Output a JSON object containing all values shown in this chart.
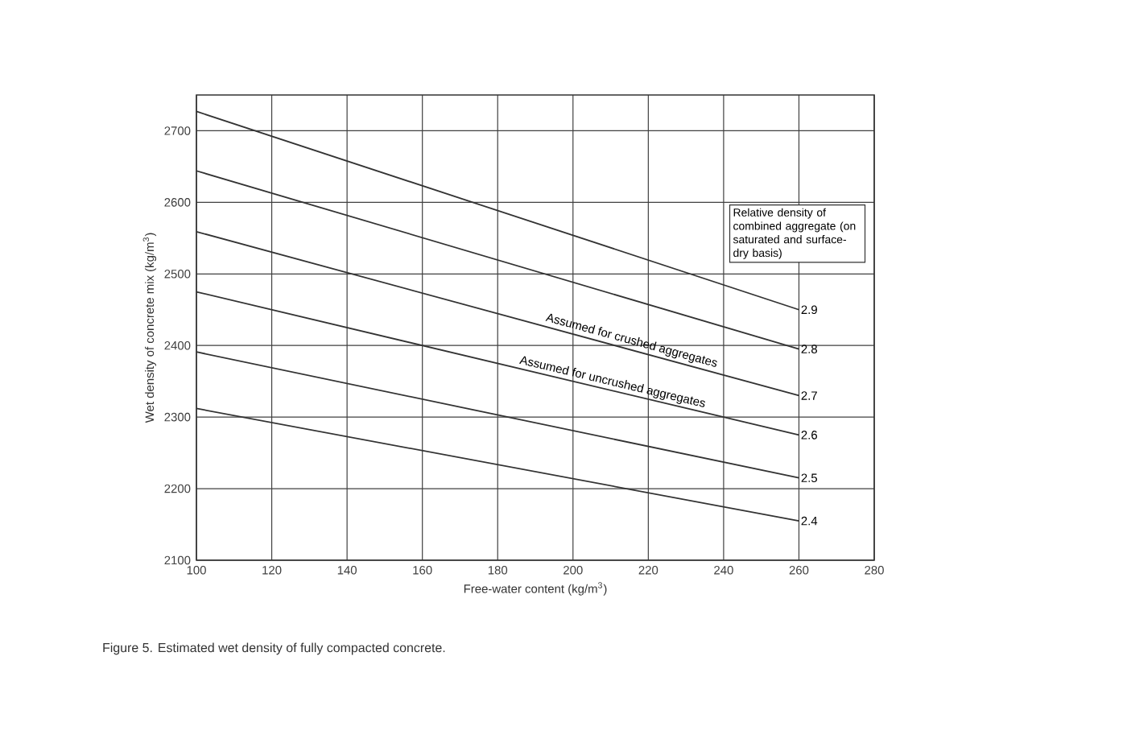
{
  "chart_data": {
    "type": "line",
    "xlabel": "Free-water content (kg/m$^{3}$)",
    "ylabel": "Wet density of concrete mix (kg/m$^{3}$)",
    "legend_title": "Relative density of combined aggregate (on saturated and surface-dry basis)",
    "x": [
      100,
      260
    ],
    "series": [
      {
        "name": "2.9",
        "color": "#333333",
        "values": [
          2727,
          2450
        ]
      },
      {
        "name": "2.8",
        "color": "#333333",
        "values": [
          2644,
          2395
        ]
      },
      {
        "name": "2.7",
        "color": "#333333",
        "values": [
          2559,
          2330
        ]
      },
      {
        "name": "2.6",
        "color": "#333333",
        "values": [
          2475,
          2275
        ]
      },
      {
        "name": "2.5",
        "color": "#333333",
        "values": [
          2391,
          2215
        ]
      },
      {
        "name": "2.4",
        "color": "#333333",
        "values": [
          2312,
          2155
        ]
      }
    ],
    "annotations": [
      {
        "text": "Assumed for crushed aggregates",
        "x": 215,
        "y": 2395
      },
      {
        "text": "Assumed for uncrushed aggregates",
        "x": 210,
        "y": 2337
      },
      "Figure 5. Estimated wet density of fully compacted concrete."
    ],
    "xlim": [
      100,
      280
    ],
    "ylim": [
      2100,
      2750
    ],
    "xticks": [
      100,
      120,
      140,
      160,
      180,
      200,
      220,
      240,
      260,
      280
    ],
    "yticks": [
      2100,
      2200,
      2300,
      2400,
      2500,
      2600,
      2700
    ],
    "grid": true,
    "marker": "none",
    "line_style": "solid"
  }
}
